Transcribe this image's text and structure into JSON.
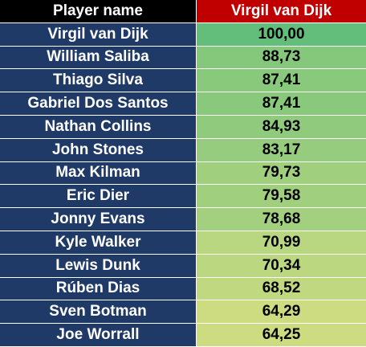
{
  "header": {
    "name_label": "Player name",
    "value_label": "Virgil van Dijk"
  },
  "rows": [
    {
      "name": "Virgil van Dijk",
      "value": "100,00",
      "color": "#63be7b"
    },
    {
      "name": "William Saliba",
      "value": "88,73",
      "color": "#85c87c"
    },
    {
      "name": "Thiago Silva",
      "value": "87,41",
      "color": "#88c97c"
    },
    {
      "name": "Gabriel Dos Santos",
      "value": "87,41",
      "color": "#88c97c"
    },
    {
      "name": "Nathan Collins",
      "value": "84,93",
      "color": "#90cb7d"
    },
    {
      "name": "John Stones",
      "value": "83,17",
      "color": "#95cc7d"
    },
    {
      "name": "Max Kilman",
      "value": "79,73",
      "color": "#a0cf7e"
    },
    {
      "name": "Eric Dier",
      "value": "79,58",
      "color": "#a0cf7e"
    },
    {
      "name": "Jonny Evans",
      "value": "78,68",
      "color": "#a2d07e"
    },
    {
      "name": "Kyle Walker",
      "value": "70,99",
      "color": "#b9d680"
    },
    {
      "name": "Lewis Dunk",
      "value": "70,34",
      "color": "#bbd780"
    },
    {
      "name": "Rúben Dias",
      "value": "68,52",
      "color": "#c0d880"
    },
    {
      "name": "Sven Botman",
      "value": "64,29",
      "color": "#cddc81"
    },
    {
      "name": "Joe Worrall",
      "value": "64,25",
      "color": "#cddc81"
    }
  ]
}
